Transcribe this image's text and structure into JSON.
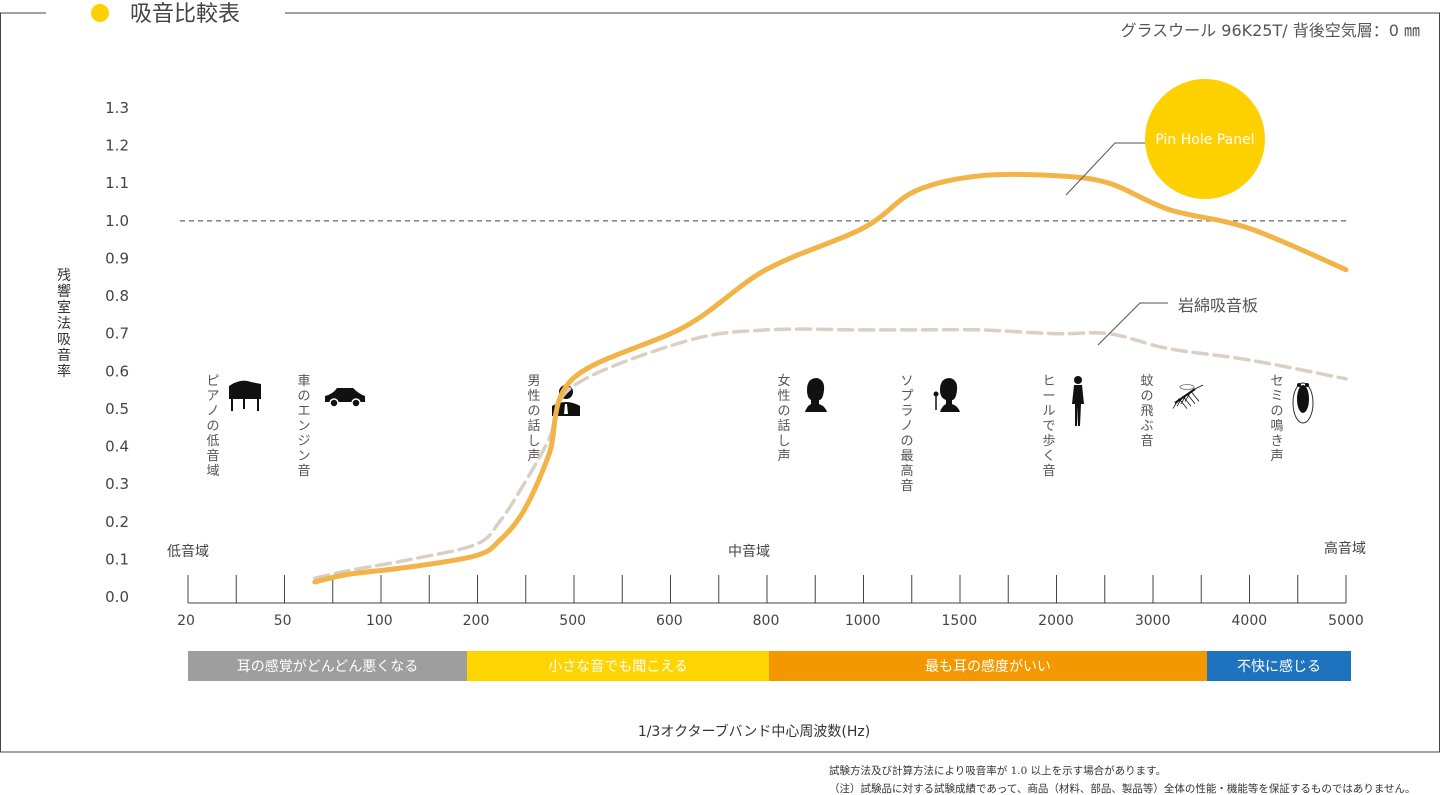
{
  "header": {
    "title": "吸音比較表",
    "subtitle": "グラスウール 96K25T/ 背後空気層：0 ㎜",
    "dot_color": "#FFD000"
  },
  "y_axis": {
    "label": "残響室法吸音率",
    "ticks": [
      "1.3",
      "1.2",
      "1.1",
      "1.0",
      "0.9",
      "0.8",
      "0.7",
      "0.6",
      "0.5",
      "0.4",
      "0.3",
      "0.2",
      "0.1",
      "0.0"
    ]
  },
  "x_axis": {
    "label": "1/3オクターブバンド中心周波数(Hz)",
    "ticks": [
      "20",
      "50",
      "100",
      "200",
      "500",
      "600",
      "800",
      "1000",
      "1500",
      "2000",
      "3000",
      "4000",
      "5000"
    ]
  },
  "ranges": {
    "low": "低音域",
    "mid": "中音域",
    "high": "高音域"
  },
  "bands": [
    {
      "label": "耳の感覚がどんどん悪くなる",
      "color": "#9E9E9E"
    },
    {
      "label": "小さな音でも聞こえる",
      "color": "#FFD400"
    },
    {
      "label": "最も耳の感度がいい",
      "color": "#F39800"
    },
    {
      "label": "不快に感じる",
      "color": "#1E73BE"
    }
  ],
  "sounds": [
    {
      "label": "ピアノの低音域",
      "icon": "piano-icon"
    },
    {
      "label": "車のエンジン音",
      "icon": "car-icon"
    },
    {
      "label": "男性の話し声",
      "icon": "man-icon"
    },
    {
      "label": "女性の話し声",
      "icon": "woman-icon"
    },
    {
      "label": "ソプラノの最高音",
      "icon": "soprano-icon"
    },
    {
      "label": "ヒールで歩く音",
      "icon": "heel-walk-icon"
    },
    {
      "label": "蚊の飛ぶ音",
      "icon": "mosquito-icon"
    },
    {
      "label": "セミの鳴き声",
      "icon": "cicada-icon"
    }
  ],
  "notes": [
    "試験方法及び計算方法により吸音率が 1.0 以上を示す場合があります。",
    "（注）試験品に対する試験成績であって、商品（材料、部品、製品等）全体の性能・機能等を保証するものではありません。"
  ],
  "chart_data": {
    "type": "line",
    "title": "吸音比較表",
    "xlabel": "1/3オクターブバンド中心周波数(Hz)",
    "ylabel": "残響室法吸音率",
    "ylim": [
      0,
      1.3
    ],
    "reference_line": 1.0,
    "grid": false,
    "series": [
      {
        "name": "Pin Hole Panel",
        "color": "#F2B347",
        "x": [
          63,
          80,
          125,
          200,
          250,
          315,
          400,
          500,
          630,
          800,
          1000,
          1250,
          1600,
          2000,
          2500,
          3150,
          4000,
          5000
        ],
        "values": [
          0.04,
          0.06,
          0.08,
          0.11,
          0.15,
          0.23,
          0.38,
          0.58,
          0.72,
          0.87,
          0.98,
          1.08,
          1.12,
          1.12,
          1.1,
          1.03,
          0.98,
          0.87
        ]
      },
      {
        "name": "岩綿吸音板",
        "color": "#D9CFC4",
        "x": [
          63,
          80,
          125,
          200,
          250,
          315,
          400,
          500,
          630,
          800,
          1000,
          1250,
          1600,
          2000,
          2500,
          3150,
          4000,
          5000
        ],
        "values": [
          0.05,
          0.07,
          0.1,
          0.14,
          0.2,
          0.3,
          0.42,
          0.56,
          0.68,
          0.71,
          0.71,
          0.71,
          0.71,
          0.7,
          0.7,
          0.66,
          0.63,
          0.58
        ]
      }
    ]
  }
}
